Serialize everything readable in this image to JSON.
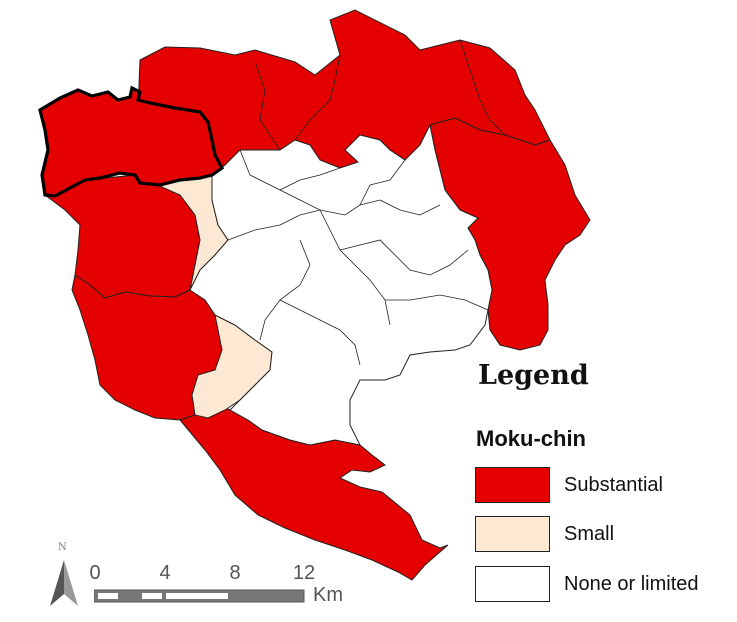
{
  "legend": {
    "title": "Legend",
    "subtitle": "Moku-chin",
    "items": [
      {
        "label": "Substantial",
        "color": "#e50000"
      },
      {
        "label": "Small",
        "color": "#fde8d4"
      },
      {
        "label": "None or limited",
        "color": "#ffffff"
      }
    ]
  },
  "north_arrow": {
    "label": "N"
  },
  "scale_bar": {
    "ticks": [
      "0",
      "4",
      "8",
      "12"
    ],
    "unit": "Km"
  },
  "colors": {
    "substantial": "#e50000",
    "small": "#fde8d4",
    "none": "#ffffff",
    "border": "#222222"
  }
}
